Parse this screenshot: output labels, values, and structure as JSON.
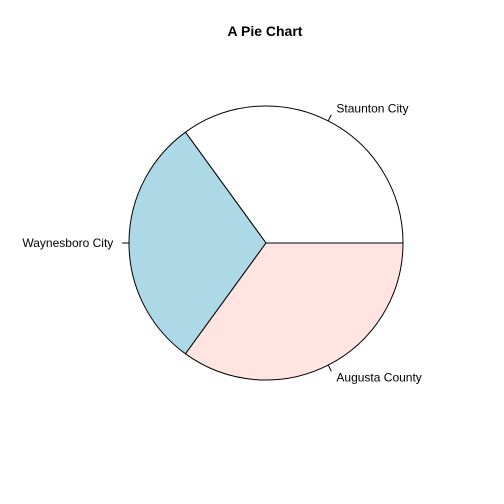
{
  "chart_data": {
    "type": "pie",
    "title": "A Pie Chart",
    "categories": [
      "Staunton City",
      "Waynesboro City",
      "Augusta County"
    ],
    "values": [
      0.35,
      0.3,
      0.35
    ],
    "colors": [
      "#FFFFFF",
      "#ADD8E6",
      "#FFE4E1"
    ],
    "start_angle_deg": 0,
    "direction": "counterclockwise"
  }
}
